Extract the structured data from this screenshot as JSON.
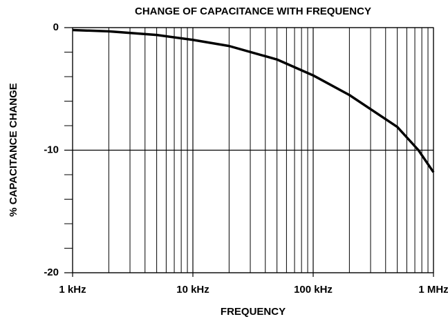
{
  "chart_data": {
    "type": "line",
    "title": "CHANGE OF CAPACITANCE WITH FREQUENCY",
    "x_label": "FREQUENCY",
    "y_label": "% CAPACITANCE CHANGE",
    "x_scale": "log",
    "xlim": [
      1000,
      1000000
    ],
    "xticks": [
      {
        "value": 1000,
        "label": "1 kHz"
      },
      {
        "value": 10000,
        "label": "10 kHz"
      },
      {
        "value": 100000,
        "label": "100 kHz"
      },
      {
        "value": 1000000,
        "label": "1 MHz"
      }
    ],
    "x_minor_ticks": [
      2000,
      3000,
      4000,
      5000,
      6000,
      7000,
      8000,
      9000,
      20000,
      30000,
      40000,
      50000,
      60000,
      70000,
      80000,
      90000,
      200000,
      300000,
      400000,
      500000,
      600000,
      700000,
      800000,
      900000
    ],
    "ylim": [
      -20,
      0
    ],
    "yticks": [
      -20,
      -10,
      0
    ],
    "y_minor_ticks": [
      -2,
      -4,
      -6,
      -8,
      -12,
      -14,
      -16,
      -18
    ],
    "grid": true,
    "series": [
      {
        "color": "#000000",
        "x": [
          1000,
          2000,
          5000,
          10000,
          20000,
          50000,
          100000,
          200000,
          500000,
          750000,
          1000000
        ],
        "values": [
          -0.2,
          -0.3,
          -0.6,
          -1.0,
          -1.5,
          -2.6,
          -3.9,
          -5.5,
          -8.1,
          -10.0,
          -11.8
        ]
      }
    ]
  }
}
